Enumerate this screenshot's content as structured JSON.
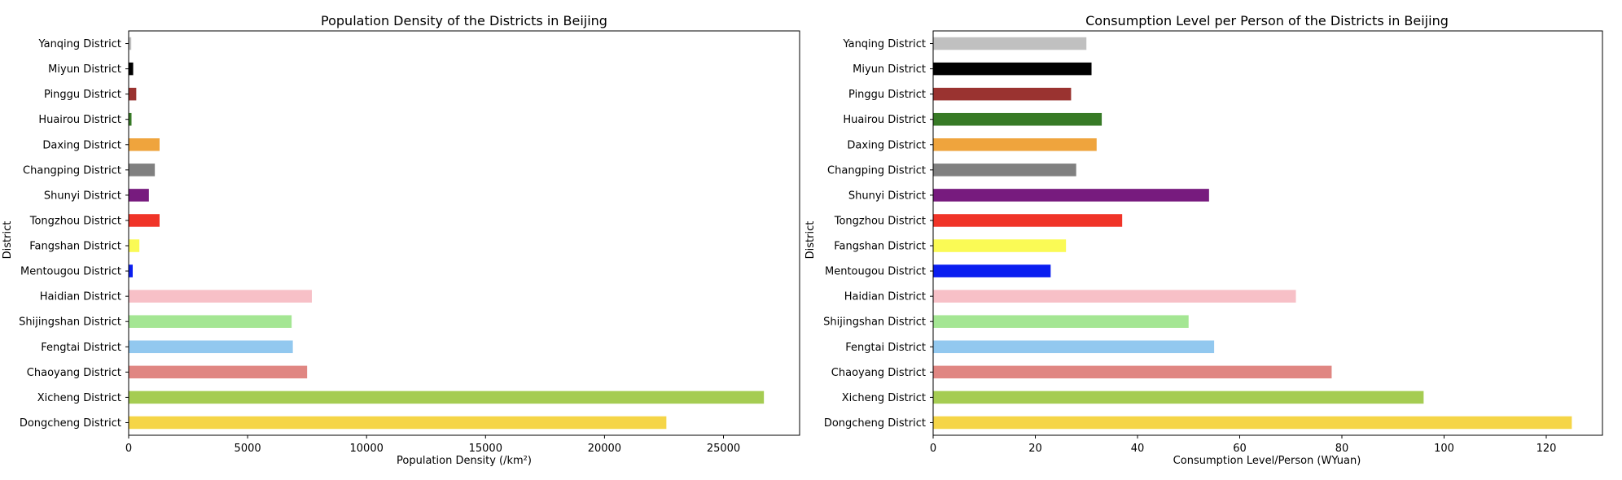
{
  "chart_data": [
    {
      "type": "bar",
      "orientation": "horizontal",
      "title": "Population Density of the Districts in Beijing",
      "xlabel": "Population Density (/km²)",
      "ylabel": "District",
      "xlim": [
        0,
        28200
      ],
      "xticks": [
        0,
        5000,
        10000,
        15000,
        20000,
        25000
      ],
      "categories": [
        "Dongcheng District",
        "Xicheng District",
        "Chaoyang District",
        "Fengtai District",
        "Shijingshan District",
        "Haidian District",
        "Mentougou District",
        "Fangshan District",
        "Tongzhou District",
        "Shunyi District",
        "Changping District",
        "Daxing District",
        "Huairou District",
        "Pinggu District",
        "Miyun District",
        "Yanqing District"
      ],
      "values": [
        22600,
        26700,
        7500,
        6900,
        6850,
        7700,
        170,
        450,
        1300,
        850,
        1100,
        1300,
        120,
        320,
        190,
        110
      ],
      "colors": [
        "#f5d547",
        "#a5cc52",
        "#e08682",
        "#92c8ef",
        "#a4e693",
        "#f7c0c7",
        "#0a1ef0",
        "#fafa55",
        "#f03428",
        "#771b7e",
        "#808080",
        "#efa43d",
        "#377a26",
        "#9a3330",
        "#000000",
        "#c0c0c0"
      ],
      "grid": false,
      "legend": "none"
    },
    {
      "type": "bar",
      "orientation": "horizontal",
      "title": "Consumption Level per Person of the Districts in Beijing",
      "xlabel": "Consumption Level/Person (WYuan)",
      "ylabel": "District",
      "xlim": [
        0,
        131
      ],
      "xticks": [
        0,
        20,
        40,
        60,
        80,
        100,
        120
      ],
      "categories": [
        "Dongcheng District",
        "Xicheng District",
        "Chaoyang District",
        "Fengtai District",
        "Shijingshan District",
        "Haidian District",
        "Mentougou District",
        "Fangshan District",
        "Tongzhou District",
        "Shunyi District",
        "Changping District",
        "Daxing District",
        "Huairou District",
        "Pinggu District",
        "Miyun District",
        "Yanqing District"
      ],
      "values": [
        125,
        96,
        78,
        55,
        50,
        71,
        23,
        26,
        37,
        54,
        28,
        32,
        33,
        27,
        31,
        30
      ],
      "colors": [
        "#f5d547",
        "#a5cc52",
        "#e08682",
        "#92c8ef",
        "#a4e693",
        "#f7c0c7",
        "#0a1ef0",
        "#fafa55",
        "#f03428",
        "#771b7e",
        "#808080",
        "#efa43d",
        "#377a26",
        "#9a3330",
        "#000000",
        "#c0c0c0"
      ],
      "grid": false,
      "legend": "none"
    }
  ]
}
